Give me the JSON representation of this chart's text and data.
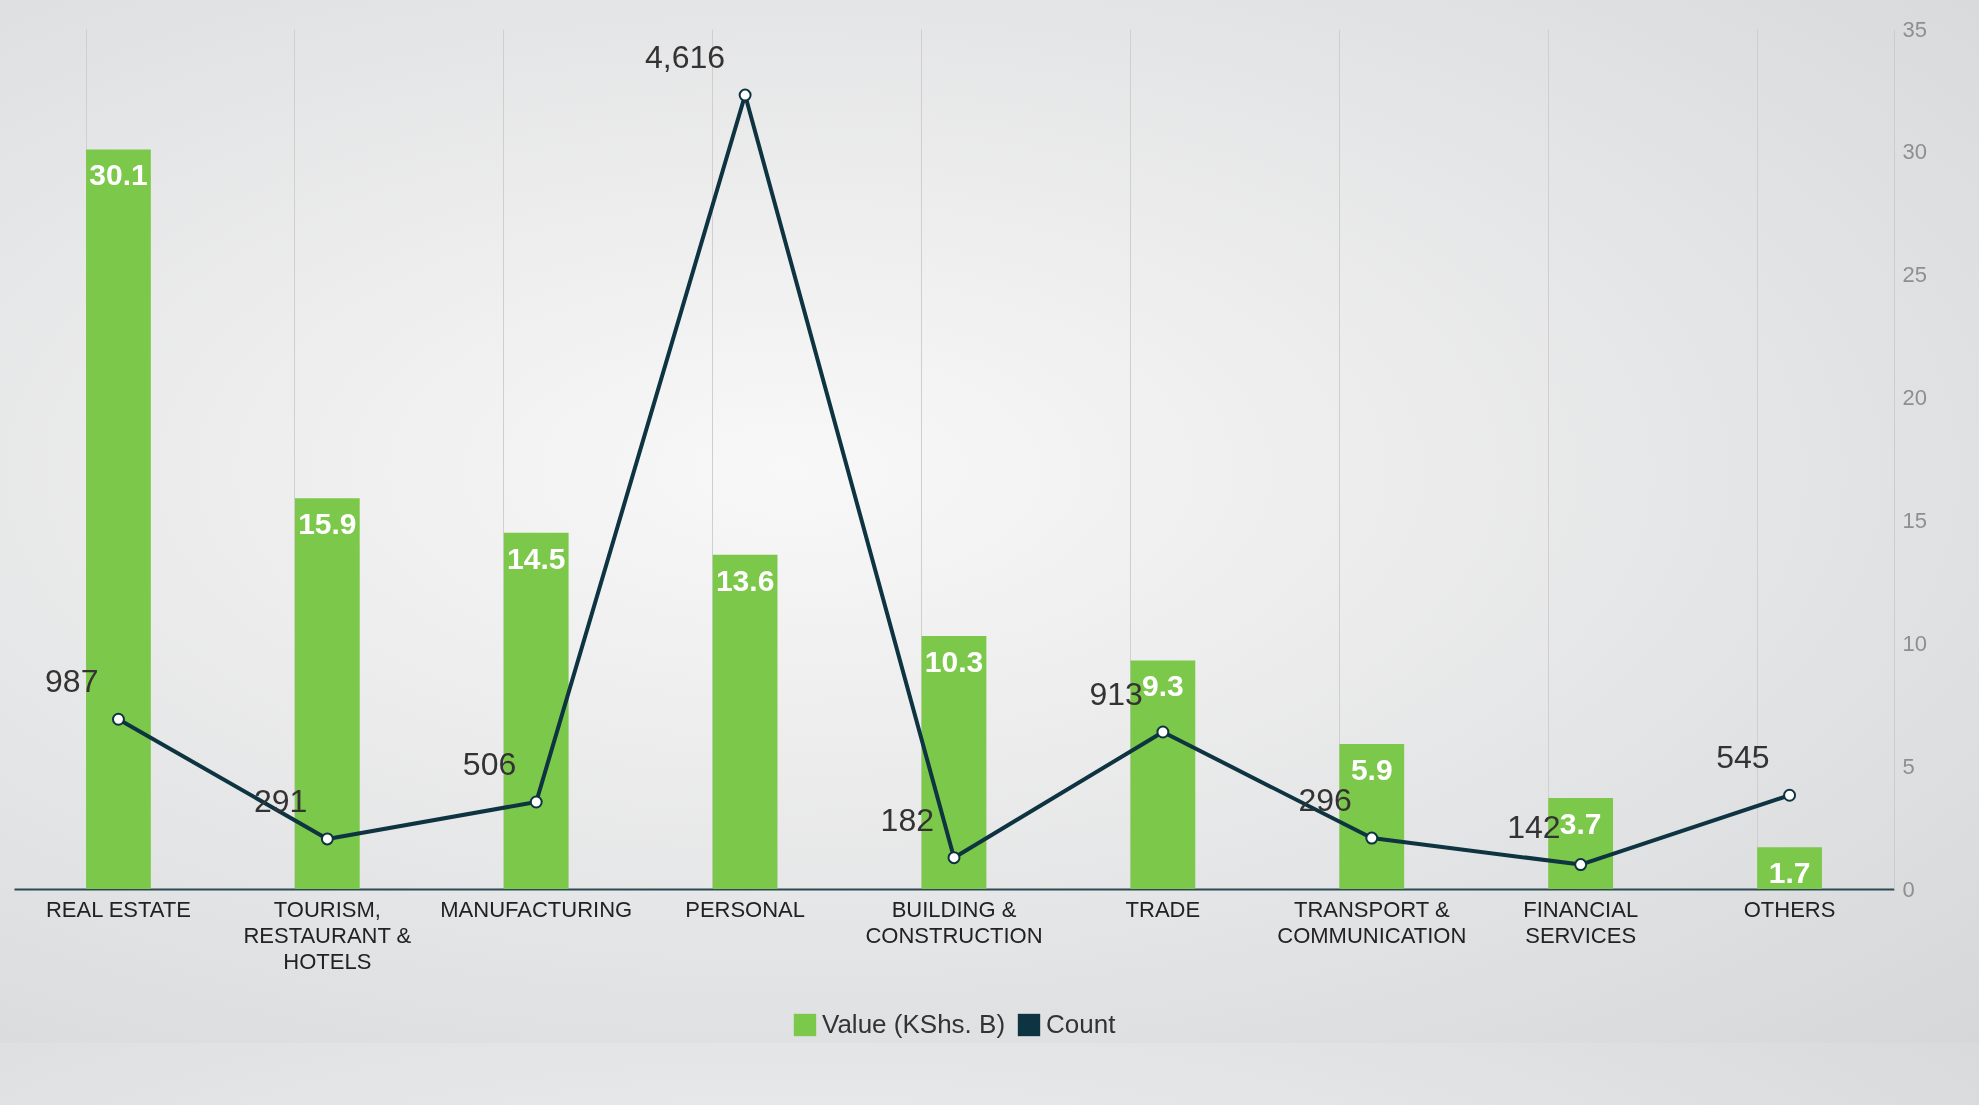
{
  "chart_data": {
    "type": "bar",
    "categories": [
      "REAL ESTATE",
      "TOURISM, RESTAURANT & HOTELS",
      "MANUFACTURING",
      "PERSONAL",
      "BUILDING & CONSTRUCTION",
      "TRADE",
      "TRANSPORT & COMMUNICATION",
      "FINANCIAL SERVICES",
      "OTHERS"
    ],
    "series": [
      {
        "name": "Value (KShs. B)",
        "color": "#7cc84a",
        "values": [
          30.1,
          15.9,
          14.5,
          13.6,
          10.3,
          9.3,
          5.9,
          3.7,
          1.7
        ]
      },
      {
        "name": "Count",
        "type": "line",
        "axis": "y2",
        "color": "#0d3440",
        "values": [
          987,
          291,
          506,
          4616,
          182,
          913,
          296,
          142,
          545
        ],
        "value_labels": [
          "987",
          "291",
          "506",
          "4,616",
          "182",
          "913",
          "296",
          "142",
          "545"
        ]
      }
    ],
    "ylim": [
      0,
      35
    ],
    "yticks": [
      0,
      5,
      10,
      15,
      20,
      25,
      30,
      35
    ],
    "y2lim": [
      0,
      5000
    ],
    "data_labels": true,
    "grid": "x",
    "legend": "bottom",
    "marker": "circle"
  }
}
